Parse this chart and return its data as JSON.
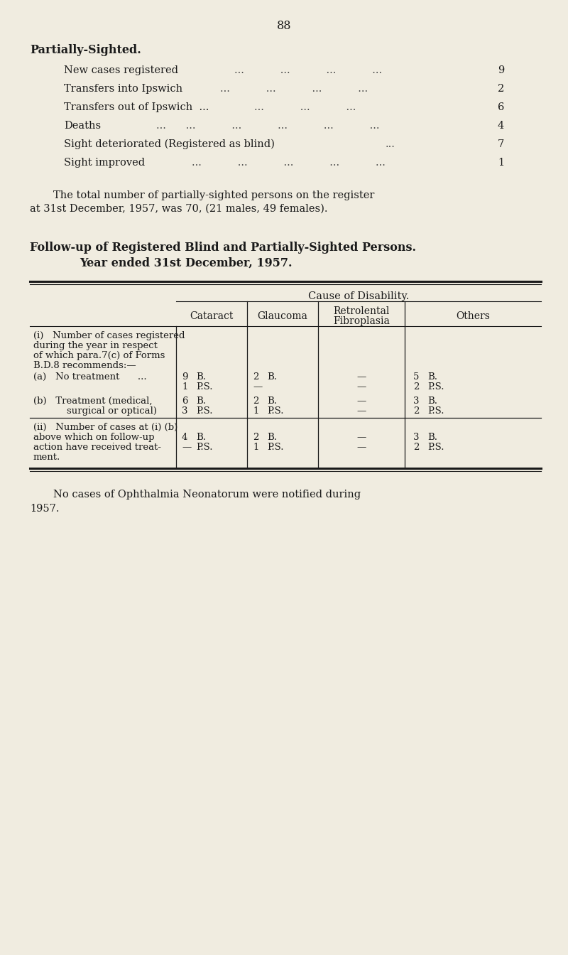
{
  "bg_color": "#f0ece0",
  "text_color": "#1a1a1a",
  "page_number": "88",
  "section1_title": "Partially-Sighted.",
  "rows_labels": [
    "New cases registered",
    "Transfers into Ipswich",
    "Transfers out of Ipswich  ...",
    "Deaths",
    "Sight deteriorated (Registered as blind)",
    "Sight improved"
  ],
  "rows_dots": [
    "...           ...           ...           ...",
    "...           ...           ...           ...",
    "...           ...           ...",
    "...      ...           ...           ...           ...           ...",
    "...",
    "...           ...           ...           ...           ..."
  ],
  "rows_values": [
    "9",
    "2",
    "6",
    "4",
    "7",
    "1"
  ],
  "para1": "The total number of partially-sighted persons on the register at 31st December,",
  "para2": "1957, was 70, (21 males, 49 females).",
  "title2_line1": "Follow-up of Registered Blind and Partially-Sighted Persons.",
  "title2_line2": "Year ended 31st December, 1957.",
  "cause_header": "Cause of Disability.",
  "col_headers": [
    "Cataract",
    "Glaucoma",
    "Retrolental\nFibroplasia",
    "Others"
  ],
  "row_i_lines": [
    "(i)   Number of cases registered",
    "during the year in respect",
    "of which para.7(c) of Forms",
    "B.D.8 recommends:—"
  ],
  "row_ia_label": "(a)   No treatment      ...",
  "row_ib_lines": [
    "(b)   Treatment (medical,",
    "        surgical or optical)"
  ],
  "row_ii_lines": [
    "(ii)   Number of cases at (i) (b)",
    "above which on follow-up",
    "action have received treat-",
    "ment."
  ],
  "table_data": {
    "ia": {
      "cat": [
        "9",
        "B.",
        "1",
        "P.S."
      ],
      "gla": [
        "2",
        "B.",
        "—",
        ""
      ],
      "ret": [
        "—",
        "",
        "—",
        ""
      ],
      "oth": [
        "5",
        "B.",
        "2",
        "P.S."
      ]
    },
    "ib": {
      "cat": [
        "6",
        "B.",
        "3",
        "P.S."
      ],
      "gla": [
        "2",
        "B.",
        "1",
        "P.S."
      ],
      "ret": [
        "—",
        "",
        "—",
        ""
      ],
      "oth": [
        "3",
        "B.",
        "2",
        "P.S."
      ]
    },
    "ii": {
      "cat": [
        "4",
        "B.",
        "—",
        "P.S."
      ],
      "gla": [
        "2",
        "B.",
        "1",
        "P.S."
      ],
      "ret": [
        "—",
        "",
        "—",
        ""
      ],
      "oth": [
        "3",
        "B.",
        "2",
        "P.S."
      ]
    }
  },
  "footnote_line1": "No cases of Ophthalmia Neonatorum were notified during",
  "footnote_line2": "1957."
}
